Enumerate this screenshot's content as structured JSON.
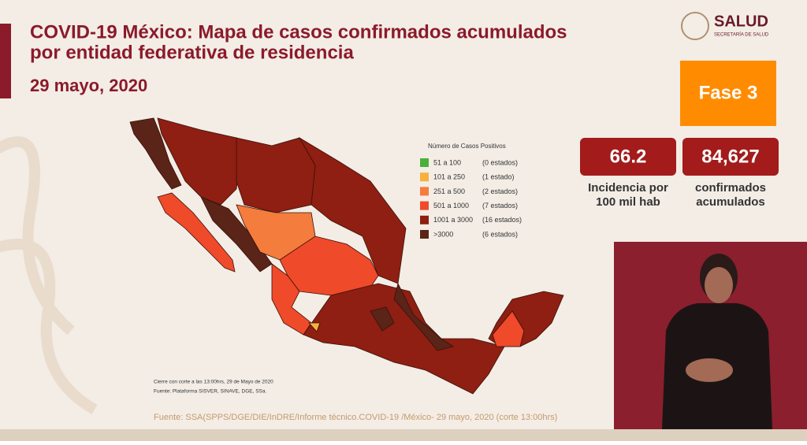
{
  "header": {
    "title_line1": "COVID-19 México: Mapa de casos confirmados acumulados",
    "title_line2": "por entidad federativa de residencia",
    "date": "29 mayo, 2020"
  },
  "logo": {
    "name": "SALUD",
    "subtitle": "SECRETARÍA DE SALUD"
  },
  "phase": "Fase 3",
  "stats": [
    {
      "value": "66.2",
      "label_line1": "Incidencia por",
      "label_line2": "100 mil hab"
    },
    {
      "value": "84,627",
      "label_line1": "confirmados",
      "label_line2": "acumulados"
    }
  ],
  "legend": {
    "title": "Número de Casos Positivos",
    "items": [
      {
        "range": "51 a 100",
        "count": "(0 estados)",
        "color": "#4caf3a"
      },
      {
        "range": "101 a 250",
        "count": "(1 estado)",
        "color": "#f6b13c"
      },
      {
        "range": "251 a 500",
        "count": "(2 estados)",
        "color": "#f47c3c"
      },
      {
        "range": "501 a 1000",
        "count": "(7 estados)",
        "color": "#ef4a2a"
      },
      {
        "range": "1001 a 3000",
        "count": "(16 estados)",
        "color": "#8e1f12"
      },
      {
        "range": ">3000",
        "count": "(6 estados)",
        "color": "#5a2418"
      }
    ]
  },
  "map_notes": [
    "Cierre con corte a las 13:00hrs, 29 de Mayo de 2020",
    "Fuente: Plataforma SISVER, SINAVE, DGE, SSa."
  ],
  "source": "Fuente: SSA(SPPS/DGE/DIE/InDRE/Informe técnico.COVID-19 /México- 29 mayo, 2020 (corte 13:00hrs)"
}
